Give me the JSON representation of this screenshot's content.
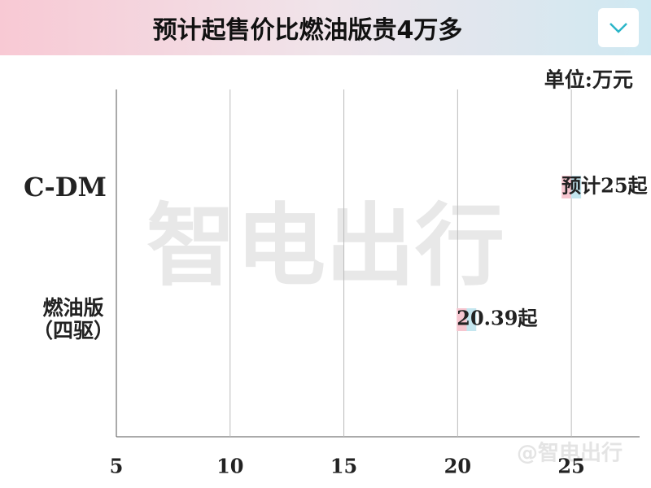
{
  "header": {
    "title": "预计起售价比燃油版贵4万多"
  },
  "watermark": {
    "center": "智电出行",
    "corner": "@智电出行"
  },
  "chart_data": {
    "type": "bar",
    "orientation": "horizontal",
    "unit_label": "单位:万元",
    "categories": [
      "C-DM",
      "燃油版\n（四驱）"
    ],
    "values": [
      25,
      20.39
    ],
    "value_labels": [
      "预计25起",
      "20.39起"
    ],
    "xlim": [
      5,
      28
    ],
    "xticks": [
      5,
      10,
      15,
      20,
      25
    ],
    "grid": true,
    "color": [
      "#f6c6d0",
      "#c4e6ef"
    ]
  }
}
